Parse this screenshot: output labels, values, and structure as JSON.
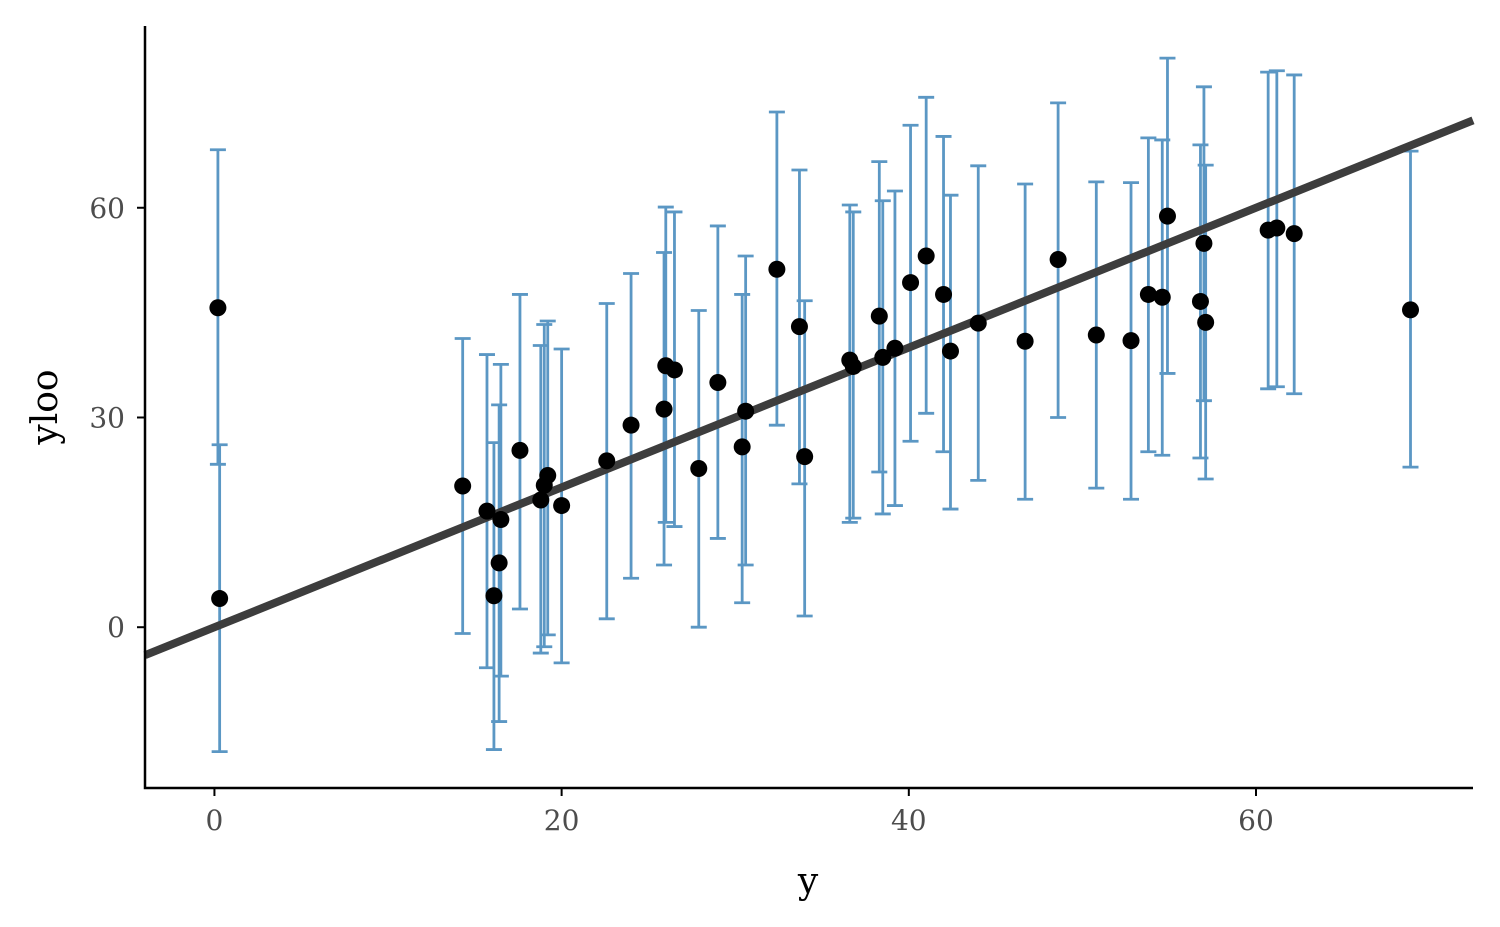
{
  "chart_data": {
    "type": "scatter",
    "xlabel": "y",
    "ylabel": "yloo",
    "xlim": [
      -4,
      72.5
    ],
    "ylim": [
      -23,
      86
    ],
    "x_ticks": [
      0,
      20,
      40,
      60
    ],
    "y_ticks": [
      0,
      30,
      60
    ],
    "grid": false,
    "legend": "none",
    "colors": {
      "errorbar": "#5b97c4",
      "point": "#000000",
      "line": "#3d3d3d"
    },
    "reference_line": {
      "slope": 1,
      "intercept": 0
    },
    "points": [
      {
        "x": 0.2,
        "y": 45.7,
        "lo": 23.3,
        "hi": 68.3
      },
      {
        "x": 0.3,
        "y": 4.1,
        "lo": -17.8,
        "hi": 26.1
      },
      {
        "x": 14.3,
        "y": 20.2,
        "lo": -0.9,
        "hi": 41.3
      },
      {
        "x": 15.7,
        "y": 16.6,
        "lo": -5.8,
        "hi": 39.0
      },
      {
        "x": 16.1,
        "y": 4.5,
        "lo": -17.5,
        "hi": 26.4
      },
      {
        "x": 16.4,
        "y": 9.2,
        "lo": -13.5,
        "hi": 31.8
      },
      {
        "x": 16.5,
        "y": 15.4,
        "lo": -7.0,
        "hi": 37.6
      },
      {
        "x": 17.6,
        "y": 25.3,
        "lo": 2.6,
        "hi": 47.6
      },
      {
        "x": 18.8,
        "y": 18.2,
        "lo": -3.7,
        "hi": 40.3
      },
      {
        "x": 19.0,
        "y": 20.3,
        "lo": -2.8,
        "hi": 43.3
      },
      {
        "x": 19.2,
        "y": 21.7,
        "lo": -1.1,
        "hi": 43.8
      },
      {
        "x": 20.0,
        "y": 17.4,
        "lo": -5.1,
        "hi": 39.8
      },
      {
        "x": 22.6,
        "y": 23.8,
        "lo": 1.2,
        "hi": 46.3
      },
      {
        "x": 24.0,
        "y": 28.9,
        "lo": 7.0,
        "hi": 50.6
      },
      {
        "x": 25.9,
        "y": 31.2,
        "lo": 8.9,
        "hi": 53.6
      },
      {
        "x": 26.0,
        "y": 37.4,
        "lo": 15.0,
        "hi": 60.1
      },
      {
        "x": 26.5,
        "y": 36.8,
        "lo": 14.4,
        "hi": 59.4
      },
      {
        "x": 27.9,
        "y": 22.7,
        "lo": 0.0,
        "hi": 45.3
      },
      {
        "x": 29.0,
        "y": 35.0,
        "lo": 12.7,
        "hi": 57.4
      },
      {
        "x": 30.4,
        "y": 25.8,
        "lo": 3.5,
        "hi": 47.6
      },
      {
        "x": 30.6,
        "y": 30.9,
        "lo": 8.9,
        "hi": 53.1
      },
      {
        "x": 32.4,
        "y": 51.2,
        "lo": 28.9,
        "hi": 73.7
      },
      {
        "x": 33.7,
        "y": 43.0,
        "lo": 20.5,
        "hi": 65.4
      },
      {
        "x": 34.0,
        "y": 24.4,
        "lo": 1.6,
        "hi": 46.7
      },
      {
        "x": 36.6,
        "y": 38.2,
        "lo": 15.0,
        "hi": 60.4
      },
      {
        "x": 36.8,
        "y": 37.3,
        "lo": 15.6,
        "hi": 59.4
      },
      {
        "x": 38.3,
        "y": 44.5,
        "lo": 22.2,
        "hi": 66.6
      },
      {
        "x": 38.5,
        "y": 38.6,
        "lo": 16.2,
        "hi": 61.0
      },
      {
        "x": 39.2,
        "y": 39.9,
        "lo": 17.4,
        "hi": 62.4
      },
      {
        "x": 40.1,
        "y": 49.3,
        "lo": 26.6,
        "hi": 71.8
      },
      {
        "x": 41.0,
        "y": 53.1,
        "lo": 30.6,
        "hi": 75.8
      },
      {
        "x": 42.0,
        "y": 47.6,
        "lo": 25.1,
        "hi": 70.2
      },
      {
        "x": 42.4,
        "y": 39.5,
        "lo": 16.9,
        "hi": 61.8
      },
      {
        "x": 44.0,
        "y": 43.5,
        "lo": 21.0,
        "hi": 66.0
      },
      {
        "x": 46.7,
        "y": 40.9,
        "lo": 18.3,
        "hi": 63.4
      },
      {
        "x": 48.6,
        "y": 52.6,
        "lo": 30.0,
        "hi": 75.0
      },
      {
        "x": 50.8,
        "y": 41.8,
        "lo": 19.9,
        "hi": 63.7
      },
      {
        "x": 52.8,
        "y": 41.0,
        "lo": 18.3,
        "hi": 63.6
      },
      {
        "x": 53.8,
        "y": 47.6,
        "lo": 25.1,
        "hi": 70.0
      },
      {
        "x": 54.6,
        "y": 47.2,
        "lo": 24.6,
        "hi": 69.7
      },
      {
        "x": 54.9,
        "y": 58.8,
        "lo": 36.3,
        "hi": 81.4
      },
      {
        "x": 56.8,
        "y": 46.6,
        "lo": 24.2,
        "hi": 69.0
      },
      {
        "x": 57.0,
        "y": 54.9,
        "lo": 32.4,
        "hi": 77.3
      },
      {
        "x": 57.1,
        "y": 43.6,
        "lo": 21.2,
        "hi": 66.1
      },
      {
        "x": 60.7,
        "y": 56.8,
        "lo": 34.1,
        "hi": 79.4
      },
      {
        "x": 61.2,
        "y": 57.1,
        "lo": 34.4,
        "hi": 79.6
      },
      {
        "x": 62.2,
        "y": 56.3,
        "lo": 33.4,
        "hi": 79.0
      },
      {
        "x": 68.9,
        "y": 45.4,
        "lo": 22.9,
        "hi": 68.1
      }
    ]
  }
}
